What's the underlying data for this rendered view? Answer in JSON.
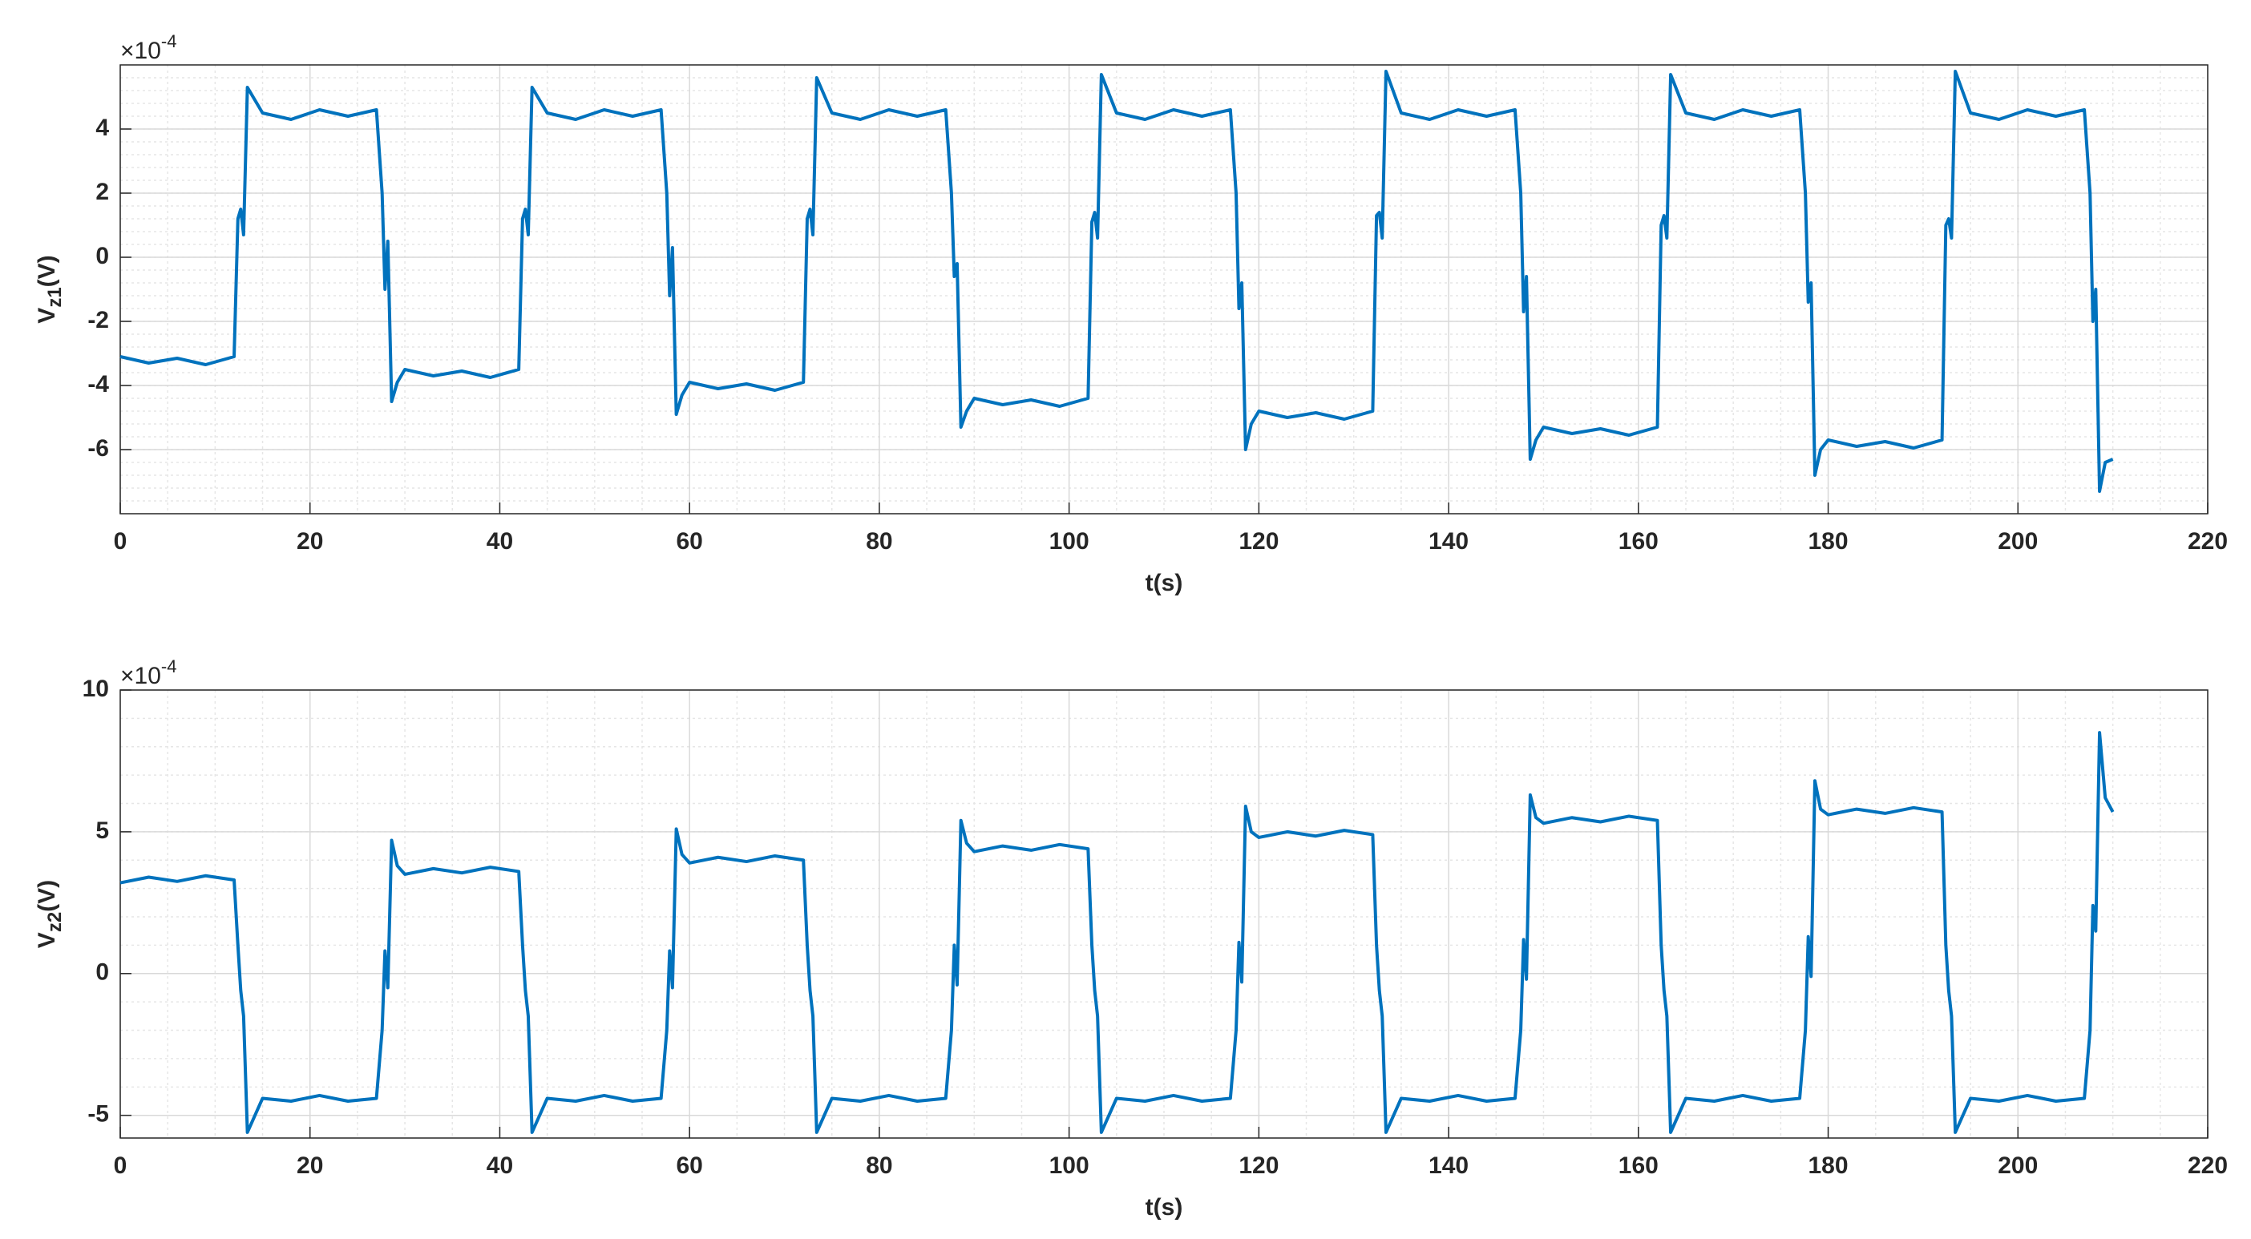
{
  "chart_data": [
    {
      "type": "line",
      "xlabel": "t(s)",
      "ylabel": "V",
      "ylabel_sub": "z1",
      "ylabel_unit": "(V)",
      "y_multiplier": "×10",
      "y_multiplier_exp": "-4",
      "xlim": [
        0,
        220
      ],
      "xticks": [
        0,
        20,
        40,
        60,
        80,
        100,
        120,
        140,
        160,
        180,
        200,
        220
      ],
      "ylim": [
        -8,
        6
      ],
      "yticks": [
        -6,
        -4,
        -2,
        0,
        2,
        4
      ],
      "grid": true,
      "minor_grid": true,
      "x": [
        0,
        3,
        6,
        9,
        12,
        12.4,
        12.7,
        13,
        13.4,
        15,
        18,
        21,
        24,
        27,
        27.6,
        27.9,
        28.2,
        28.6,
        29.2,
        30,
        33,
        36,
        39,
        42,
        42.4,
        42.7,
        43,
        43.4,
        45,
        48,
        51,
        54,
        57,
        57.6,
        57.9,
        58.2,
        58.6,
        59.2,
        60,
        63,
        66,
        69,
        72,
        72.4,
        72.7,
        73,
        73.4,
        75,
        78,
        81,
        84,
        87,
        87.6,
        87.9,
        88.2,
        88.6,
        89.2,
        90,
        93,
        96,
        99,
        102,
        102.4,
        102.7,
        103,
        103.4,
        105,
        108,
        111,
        114,
        117,
        117.6,
        117.9,
        118.2,
        118.6,
        119.2,
        120,
        123,
        126,
        129,
        132,
        132.4,
        132.7,
        133,
        133.4,
        135,
        138,
        141,
        144,
        147,
        147.6,
        147.9,
        148.2,
        148.6,
        149.2,
        150,
        153,
        156,
        159,
        162,
        162.4,
        162.7,
        163,
        163.4,
        165,
        168,
        171,
        174,
        177,
        177.6,
        177.9,
        178.2,
        178.6,
        179.2,
        180,
        183,
        186,
        189,
        192,
        192.4,
        192.7,
        193,
        193.4,
        195,
        198,
        201,
        204,
        207,
        207.6,
        207.9,
        208.2,
        208.6,
        209.2,
        210
      ],
      "series": [
        {
          "color": "#0072BD",
          "values": [
            -3.1,
            -3.3,
            -3.15,
            -3.35,
            -3.1,
            1.2,
            1.5,
            0.7,
            5.3,
            4.5,
            4.3,
            4.6,
            4.4,
            4.6,
            2,
            -1.0,
            0.5,
            -4.5,
            -3.9,
            -3.5,
            -3.7,
            -3.55,
            -3.75,
            -3.5,
            1.2,
            1.5,
            0.7,
            5.3,
            4.5,
            4.3,
            4.6,
            4.4,
            4.6,
            2,
            -1.2,
            0.3,
            -4.9,
            -4.3,
            -3.9,
            -4.1,
            -3.95,
            -4.15,
            -3.9,
            1.2,
            1.5,
            0.7,
            5.6,
            4.5,
            4.3,
            4.6,
            4.4,
            4.6,
            2,
            -0.6,
            -0.2,
            -5.3,
            -4.8,
            -4.4,
            -4.6,
            -4.45,
            -4.65,
            -4.4,
            1.1,
            1.4,
            0.6,
            5.7,
            4.5,
            4.3,
            4.6,
            4.4,
            4.6,
            2,
            -1.6,
            -0.8,
            -6.0,
            -5.2,
            -4.8,
            -5.0,
            -4.85,
            -5.05,
            -4.8,
            1.3,
            1.4,
            0.6,
            5.8,
            4.5,
            4.3,
            4.6,
            4.4,
            4.6,
            2,
            -1.7,
            -0.6,
            -6.3,
            -5.7,
            -5.3,
            -5.5,
            -5.35,
            -5.55,
            -5.3,
            1.0,
            1.3,
            0.6,
            5.7,
            4.5,
            4.3,
            4.6,
            4.4,
            4.6,
            2,
            -1.4,
            -0.8,
            -6.8,
            -6.0,
            -5.7,
            -5.9,
            -5.75,
            -5.95,
            -5.7,
            1.0,
            1.2,
            0.6,
            5.8,
            4.5,
            4.3,
            4.6,
            4.4,
            4.6,
            2,
            -2.0,
            -1.0,
            -7.3,
            -6.4,
            -6.3
          ]
        }
      ]
    },
    {
      "type": "line",
      "xlabel": "t(s)",
      "ylabel": "V",
      "ylabel_sub": "z2",
      "ylabel_unit": "(V)",
      "y_multiplier": "×10",
      "y_multiplier_exp": "-4",
      "xlim": [
        0,
        220
      ],
      "xticks": [
        0,
        20,
        40,
        60,
        80,
        100,
        120,
        140,
        160,
        180,
        200,
        220
      ],
      "ylim": [
        -5.8,
        10
      ],
      "yticks": [
        -5,
        0,
        5,
        10
      ],
      "grid": true,
      "minor_grid": true,
      "x": [
        0,
        3,
        6,
        9,
        12,
        12.4,
        12.7,
        13,
        13.4,
        15,
        18,
        21,
        24,
        27,
        27.6,
        27.9,
        28.2,
        28.6,
        29.2,
        30,
        33,
        36,
        39,
        42,
        42.4,
        42.7,
        43,
        43.4,
        45,
        48,
        51,
        54,
        57,
        57.6,
        57.9,
        58.2,
        58.6,
        59.2,
        60,
        63,
        66,
        69,
        72,
        72.4,
        72.7,
        73,
        73.4,
        75,
        78,
        81,
        84,
        87,
        87.6,
        87.9,
        88.2,
        88.6,
        89.2,
        90,
        93,
        96,
        99,
        102,
        102.4,
        102.7,
        103,
        103.4,
        105,
        108,
        111,
        114,
        117,
        117.6,
        117.9,
        118.2,
        118.6,
        119.2,
        120,
        123,
        126,
        129,
        132,
        132.4,
        132.7,
        133,
        133.4,
        135,
        138,
        141,
        144,
        147,
        147.6,
        147.9,
        148.2,
        148.6,
        149.2,
        150,
        153,
        156,
        159,
        162,
        162.4,
        162.7,
        163,
        163.4,
        165,
        168,
        171,
        174,
        177,
        177.6,
        177.9,
        178.2,
        178.6,
        179.2,
        180,
        183,
        186,
        189,
        192,
        192.4,
        192.7,
        193,
        193.4,
        195,
        198,
        201,
        204,
        207,
        207.6,
        207.9,
        208.2,
        208.6,
        209.2,
        210
      ],
      "series": [
        {
          "color": "#0072BD",
          "values": [
            3.2,
            3.4,
            3.25,
            3.45,
            3.3,
            1,
            -0.6,
            -1.5,
            -5.6,
            -4.4,
            -4.5,
            -4.3,
            -4.5,
            -4.4,
            -2,
            0.8,
            -0.5,
            4.7,
            3.8,
            3.5,
            3.7,
            3.55,
            3.75,
            3.6,
            1,
            -0.6,
            -1.5,
            -5.6,
            -4.4,
            -4.5,
            -4.3,
            -4.5,
            -4.4,
            -2,
            0.8,
            -0.5,
            5.1,
            4.2,
            3.9,
            4.1,
            3.95,
            4.15,
            4.0,
            1,
            -0.6,
            -1.5,
            -5.6,
            -4.4,
            -4.5,
            -4.3,
            -4.5,
            -4.4,
            -2,
            1.0,
            -0.4,
            5.4,
            4.6,
            4.3,
            4.5,
            4.35,
            4.55,
            4.4,
            1,
            -0.6,
            -1.5,
            -5.6,
            -4.4,
            -4.5,
            -4.3,
            -4.5,
            -4.4,
            -2,
            1.1,
            -0.3,
            5.9,
            5.0,
            4.8,
            5.0,
            4.85,
            5.05,
            4.9,
            1,
            -0.6,
            -1.5,
            -5.6,
            -4.4,
            -4.5,
            -4.3,
            -4.5,
            -4.4,
            -2,
            1.2,
            -0.2,
            6.3,
            5.5,
            5.3,
            5.5,
            5.35,
            5.55,
            5.4,
            1,
            -0.6,
            -1.5,
            -5.6,
            -4.4,
            -4.5,
            -4.3,
            -4.5,
            -4.4,
            -2,
            1.3,
            -0.1,
            6.8,
            5.8,
            5.6,
            5.8,
            5.65,
            5.85,
            5.7,
            1,
            -0.6,
            -1.5,
            -5.6,
            -4.4,
            -4.5,
            -4.3,
            -4.5,
            -4.4,
            -2,
            2.4,
            1.5,
            8.5,
            6.2,
            5.7
          ]
        }
      ]
    }
  ]
}
